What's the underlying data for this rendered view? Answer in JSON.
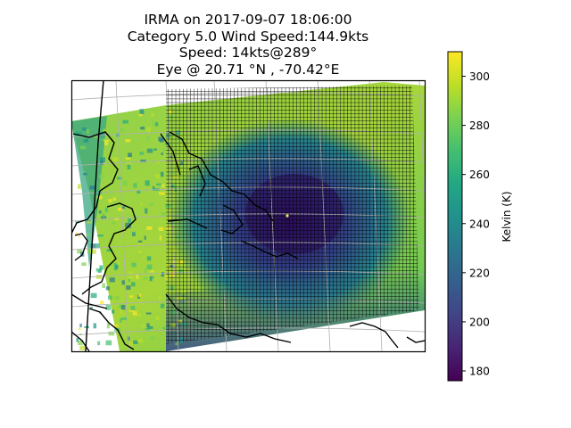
{
  "title_lines": [
    "IRMA on 2017-09-07 18:06:00",
    "Category 5.0 Wind Speed:144.9kts",
    "Speed: 14kts@289°",
    "Eye @ 20.71 °N , -70.42°E"
  ],
  "chart_data": {
    "type": "heatmap",
    "title": "IRMA on 2017-09-07 18:06:00 / Category 5.0 Wind Speed:144.9kts / Speed: 14kts@289° / Eye @ 20.71 °N , -70.42°E",
    "colorbar": {
      "label": "Kelvin (K)",
      "range": [
        176,
        310
      ],
      "ticks": [
        180,
        200,
        220,
        240,
        260,
        280,
        300
      ],
      "colormap": "viridis"
    },
    "eye": {
      "lat": 20.71,
      "lon": -70.42
    },
    "field_summary": {
      "warm_periphery_K": 290,
      "cold_core_K": 195,
      "notes": "brightness temperature image over map with overlaid grid mesh"
    },
    "grid_lines": true,
    "coastlines": true
  },
  "colors": {
    "frame": "#000000",
    "gridline": "#b0b0b0",
    "mesh": "#000000",
    "coast": "#000000"
  }
}
